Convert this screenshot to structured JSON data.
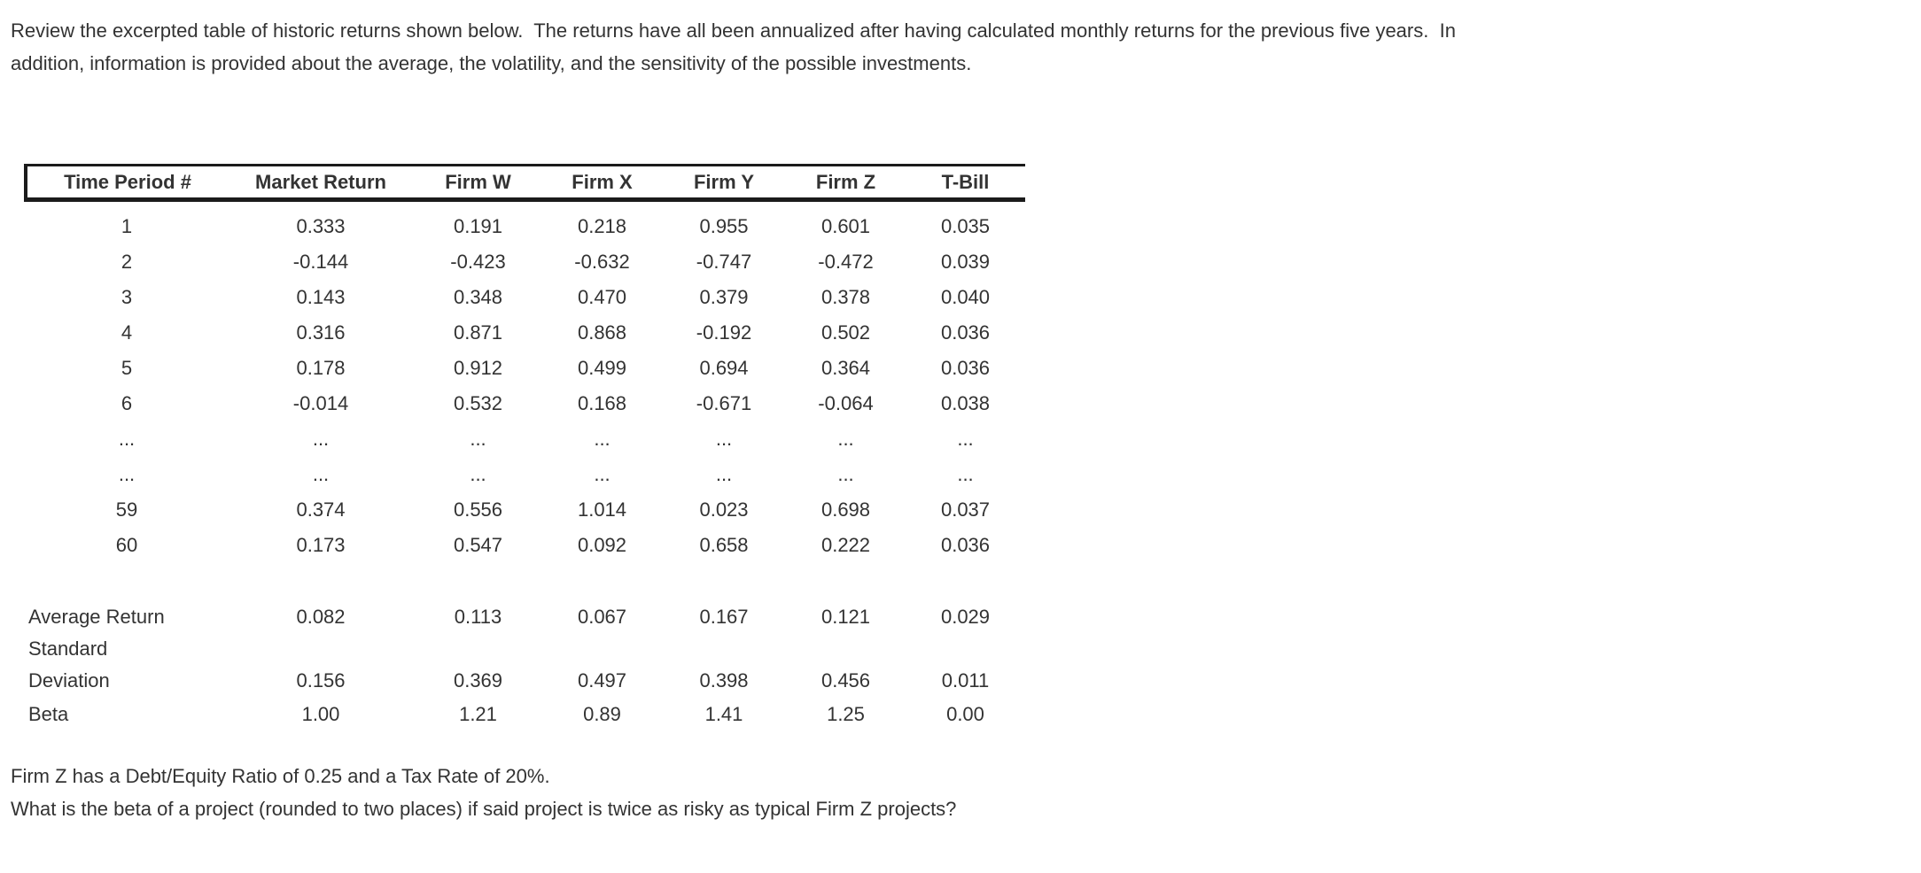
{
  "intro": {
    "line1": "Review the excerpted table of historic returns shown below.  The returns have all been annualized after having calculated monthly returns for the previous five years.  In",
    "line2": "addition, information is provided about the average, the volatility, and the sensitivity of the possible investments."
  },
  "chart_data": {
    "type": "table",
    "columns": [
      "Time Period #",
      "Market Return",
      "Firm W",
      "Firm X",
      "Firm Y",
      "Firm Z",
      "T-Bill"
    ],
    "rows": [
      [
        "1",
        "0.333",
        "0.191",
        "0.218",
        "0.955",
        "0.601",
        "0.035"
      ],
      [
        "2",
        "-0.144",
        "-0.423",
        "-0.632",
        "-0.747",
        "-0.472",
        "0.039"
      ],
      [
        "3",
        "0.143",
        "0.348",
        "0.470",
        "0.379",
        "0.378",
        "0.040"
      ],
      [
        "4",
        "0.316",
        "0.871",
        "0.868",
        "-0.192",
        "0.502",
        "0.036"
      ],
      [
        "5",
        "0.178",
        "0.912",
        "0.499",
        "0.694",
        "0.364",
        "0.036"
      ],
      [
        "6",
        "-0.014",
        "0.532",
        "0.168",
        "-0.671",
        "-0.064",
        "0.038"
      ],
      [
        "...",
        "...",
        "...",
        "...",
        "...",
        "...",
        "..."
      ],
      [
        "...",
        "...",
        "...",
        "...",
        "...",
        "...",
        "..."
      ],
      [
        "59",
        "0.374",
        "0.556",
        "1.014",
        "0.023",
        "0.698",
        "0.037"
      ],
      [
        "60",
        "0.173",
        "0.547",
        "0.092",
        "0.658",
        "0.222",
        "0.036"
      ]
    ],
    "summary": [
      {
        "label": "Average Return",
        "values": [
          "0.082",
          "0.113",
          "0.067",
          "0.167",
          "0.121",
          "0.029"
        ]
      },
      {
        "label": "Standard",
        "values": [
          "",
          "",
          "",
          "",
          "",
          ""
        ]
      },
      {
        "label": "Deviation",
        "values": [
          "0.156",
          "0.369",
          "0.497",
          "0.398",
          "0.456",
          "0.011"
        ]
      },
      {
        "label": "Beta",
        "values": [
          "1.00",
          "1.21",
          "0.89",
          "1.41",
          "1.25",
          "0.00"
        ]
      }
    ]
  },
  "footer": {
    "line1": "Firm Z has a Debt/Equity Ratio of 0.25 and a Tax Rate of 20%.",
    "line2": "What is the beta of a project (rounded to two places) if said project is twice as risky as typical Firm Z projects?"
  },
  "colors": {
    "text": "#333333",
    "border": "#1b1b1b",
    "background": "#ffffff"
  }
}
